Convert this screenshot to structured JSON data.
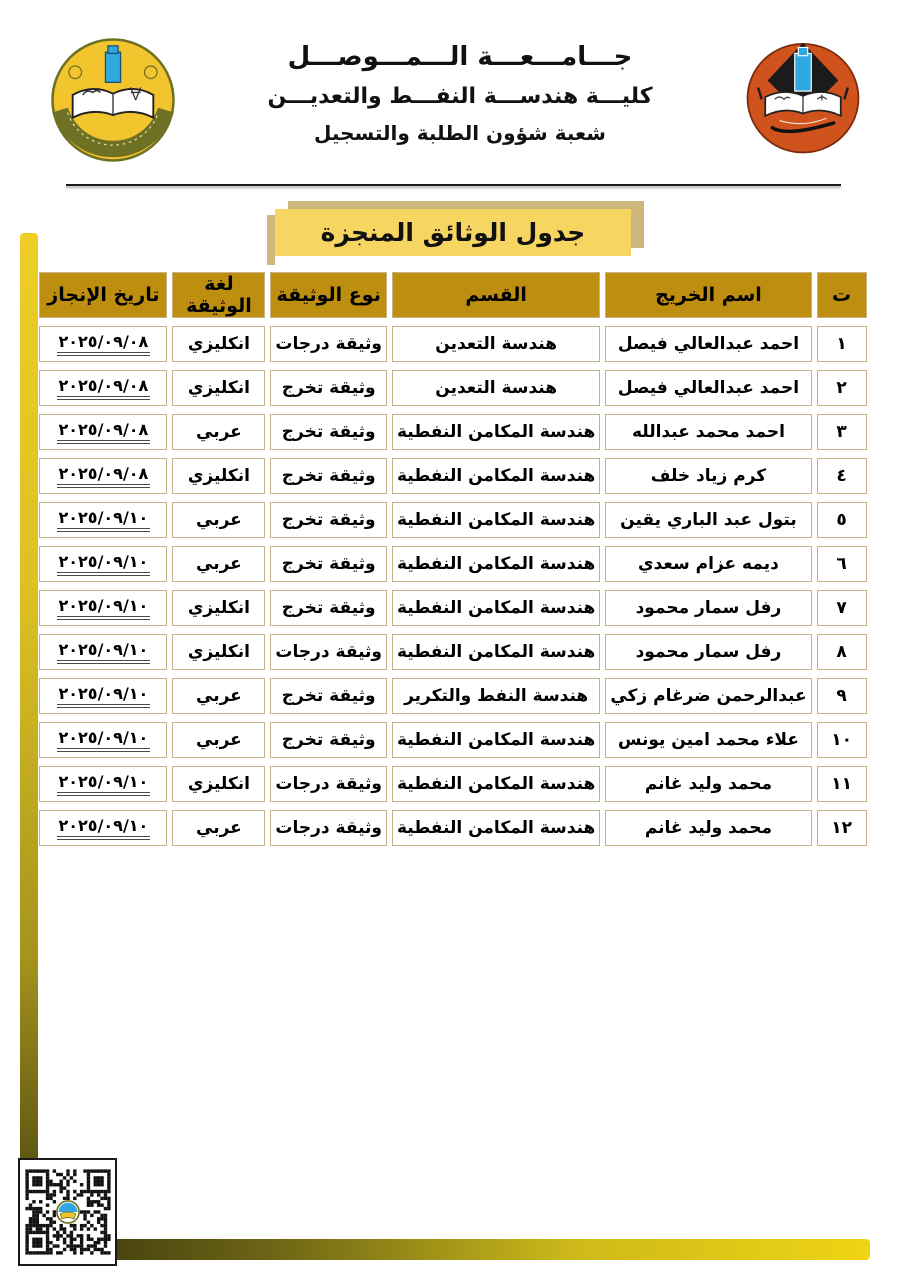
{
  "header": {
    "university": "جـــامـــعـــة الـــمـــوصـــل",
    "college": "كليـــة هندســـة النفـــط والتعديـــن",
    "division": "شعبة شؤون الطلبة والتسجيل"
  },
  "title": "جدول الوثائق المنجزة",
  "icons": {
    "left_logo": "college-of-petroleum-and-mining-engineering-emblem",
    "right_logo": "university-of-mosul-emblem",
    "qr": "qr-code"
  },
  "colors": {
    "header_gold": "#BE8E11",
    "row_yellow": "#FBDD8B",
    "banner_yellow": "#F7D561",
    "shadow_tan": "#CDB77C",
    "border_tan": "#C9B286",
    "logo_orange": "#D0521C",
    "logo_gold": "#F2C42D",
    "logo_olive": "#6E7123",
    "logo_blue": "#2FA8DF"
  },
  "table": {
    "headers": {
      "no": "ت",
      "name": "اسم الخريج",
      "department": "القسم",
      "doc_type": "نوع الوثيقة",
      "doc_language": "لغة الوثيقة",
      "completion_date": "تاريخ الإنجاز"
    },
    "rows": [
      {
        "no": "١",
        "name": "احمد عبدالعالي فيصل",
        "department": "هندسة التعدين",
        "doc_type": "وثيقة درجات",
        "doc_language": "انكليزي",
        "completion_date": "٢٠٢٥/٠٩/٠٨"
      },
      {
        "no": "٢",
        "name": "احمد عبدالعالي فيصل",
        "department": "هندسة التعدين",
        "doc_type": "وثيقة تخرج",
        "doc_language": "انكليزي",
        "completion_date": "٢٠٢٥/٠٩/٠٨"
      },
      {
        "no": "٣",
        "name": "احمد محمد عبدالله",
        "department": "هندسة المكامن النفطية",
        "doc_type": "وثيقة تخرج",
        "doc_language": "عربي",
        "completion_date": "٢٠٢٥/٠٩/٠٨"
      },
      {
        "no": "٤",
        "name": "كرم زياد خلف",
        "department": "هندسة المكامن النفطية",
        "doc_type": "وثيقة تخرج",
        "doc_language": "انكليزي",
        "completion_date": "٢٠٢٥/٠٩/٠٨"
      },
      {
        "no": "٥",
        "name": "بتول عبد الباري يقين",
        "department": "هندسة المكامن النفطية",
        "doc_type": "وثيقة تخرج",
        "doc_language": "عربي",
        "completion_date": "٢٠٢٥/٠٩/١٠"
      },
      {
        "no": "٦",
        "name": "ديمه عزام سعدي",
        "department": "هندسة المكامن النفطية",
        "doc_type": "وثيقة تخرج",
        "doc_language": "عربي",
        "completion_date": "٢٠٢٥/٠٩/١٠"
      },
      {
        "no": "٧",
        "name": "رفل سمار محمود",
        "department": "هندسة المكامن النفطية",
        "doc_type": "وثيقة تخرج",
        "doc_language": "انكليزي",
        "completion_date": "٢٠٢٥/٠٩/١٠"
      },
      {
        "no": "٨",
        "name": "رفل سمار محمود",
        "department": "هندسة المكامن النفطية",
        "doc_type": "وثيقة درجات",
        "doc_language": "انكليزي",
        "completion_date": "٢٠٢٥/٠٩/١٠"
      },
      {
        "no": "٩",
        "name": "عبدالرحمن ضرغام زكي",
        "department": "هندسة النفط والتكرير",
        "doc_type": "وثيقة تخرج",
        "doc_language": "عربي",
        "completion_date": "٢٠٢٥/٠٩/١٠"
      },
      {
        "no": "١٠",
        "name": "علاء محمد امين يونس",
        "department": "هندسة المكامن النفطية",
        "doc_type": "وثيقة تخرج",
        "doc_language": "عربي",
        "completion_date": "٢٠٢٥/٠٩/١٠"
      },
      {
        "no": "١١",
        "name": "محمد وليد غانم",
        "department": "هندسة المكامن النفطية",
        "doc_type": "وثيقة درجات",
        "doc_language": "انكليزي",
        "completion_date": "٢٠٢٥/٠٩/١٠"
      },
      {
        "no": "١٢",
        "name": "محمد وليد غانم",
        "department": "هندسة المكامن النفطية",
        "doc_type": "وثيقة درجات",
        "doc_language": "عربي",
        "completion_date": "٢٠٢٥/٠٩/١٠"
      }
    ]
  }
}
